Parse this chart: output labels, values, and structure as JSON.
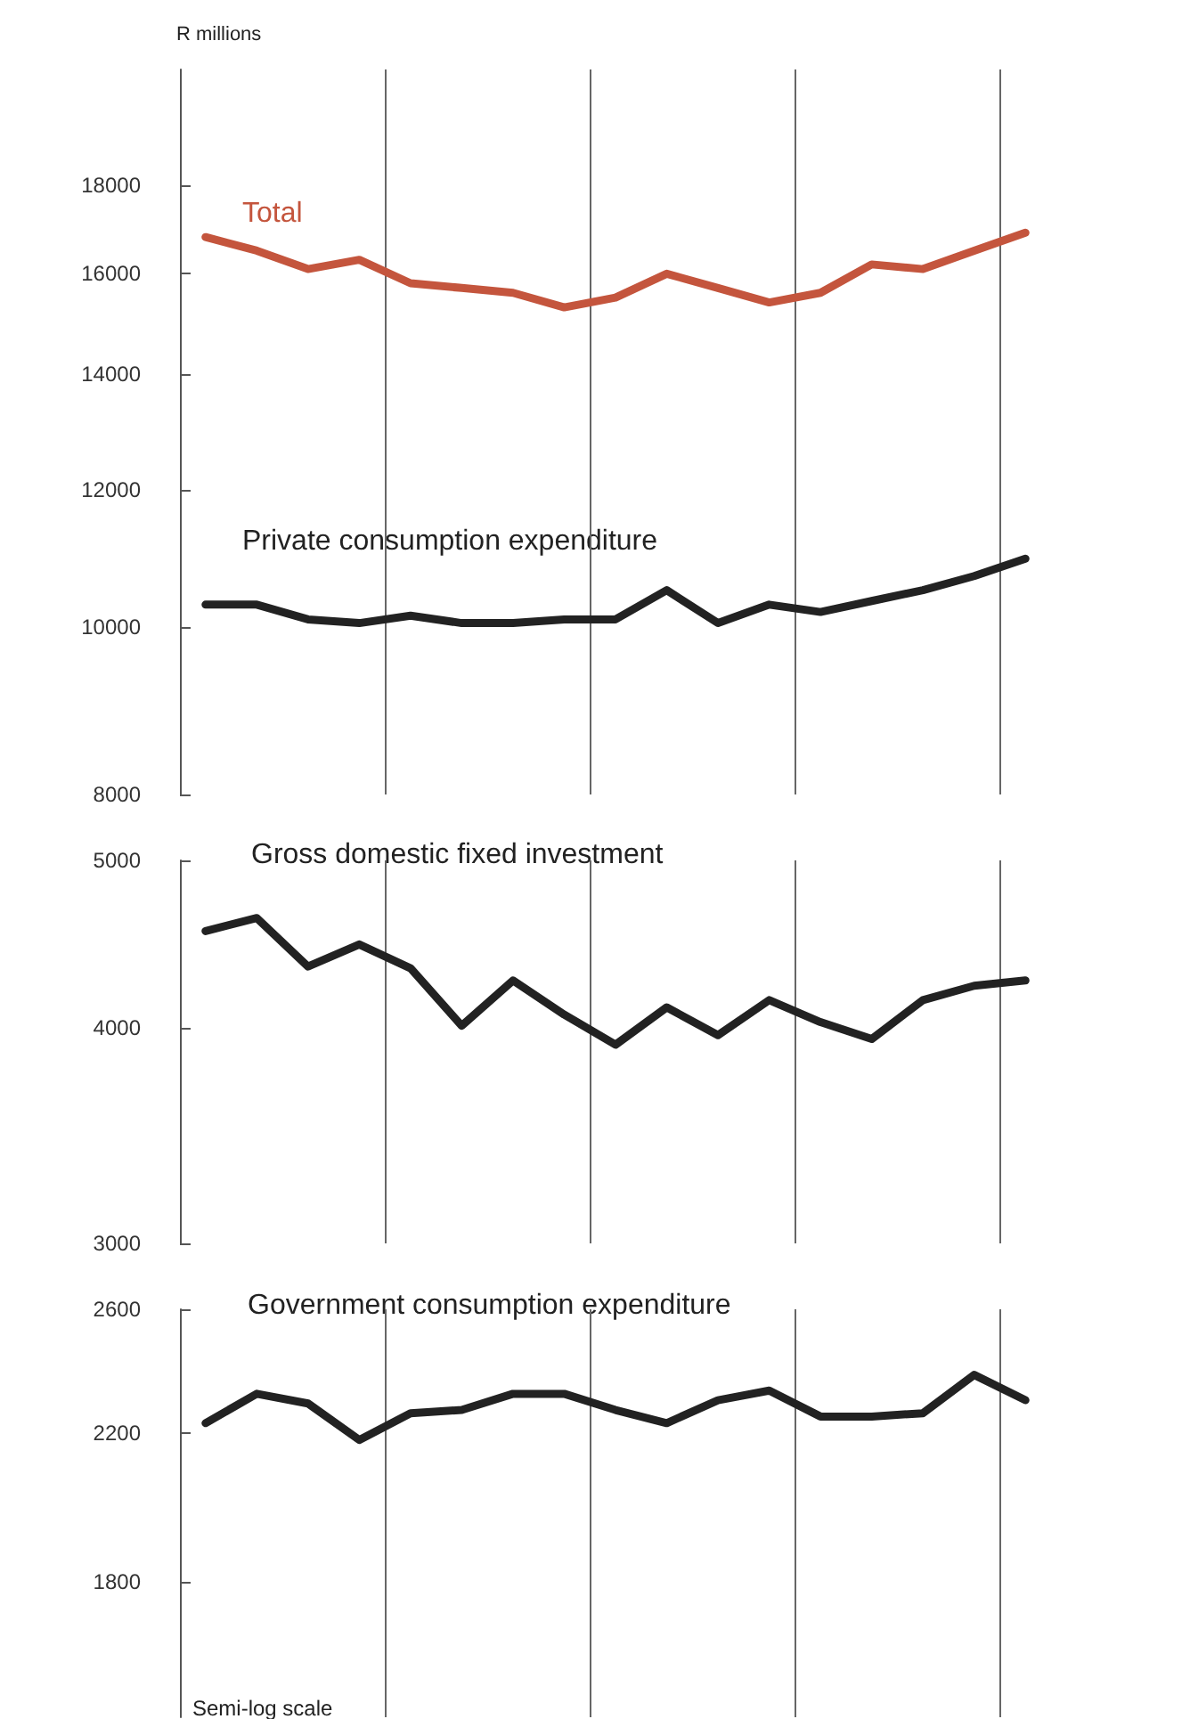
{
  "chart_data": [
    {
      "type": "line",
      "ylabel": "R millions",
      "log": true,
      "grid": "x",
      "categories": [
        null,
        null,
        null,
        null,
        null,
        null,
        null,
        null,
        null,
        null,
        null,
        null,
        null,
        null,
        null,
        null,
        null
      ],
      "ylim": [
        8000,
        21000
      ],
      "yticks": [
        8000,
        10000,
        12000,
        14000,
        16000,
        18000
      ],
      "series": [
        {
          "name": "Total",
          "color": "#c4553d",
          "values": [
            16800,
            16500,
            16100,
            16300,
            15800,
            15700,
            15600,
            15300,
            15500,
            16000,
            15700,
            15400,
            15600,
            16200,
            16100,
            16500,
            16900
          ]
        },
        {
          "name": "Private consumption expenditure",
          "color": "#222222",
          "values": [
            10300,
            10300,
            10100,
            10050,
            10150,
            10050,
            10050,
            10100,
            10100,
            10500,
            10050,
            10300,
            10200,
            10350,
            10500,
            10700,
            10950
          ]
        }
      ]
    },
    {
      "type": "line",
      "log": true,
      "grid": "x",
      "categories": [
        null,
        null,
        null,
        null,
        null,
        null,
        null,
        null,
        null,
        null,
        null,
        null,
        null,
        null,
        null,
        null,
        null
      ],
      "ylim": [
        3000,
        5000
      ],
      "yticks": [
        3000,
        4000,
        5000
      ],
      "series": [
        {
          "name": "Gross domestic fixed investment",
          "color": "#222222",
          "values": [
            4550,
            4630,
            4340,
            4470,
            4330,
            4010,
            4260,
            4070,
            3910,
            4110,
            3960,
            4150,
            4030,
            3940,
            4150,
            4230,
            4260
          ]
        }
      ]
    },
    {
      "type": "line",
      "log": true,
      "grid": "x",
      "annotations": [
        "Semi-log scale"
      ],
      "categories": [
        null,
        null,
        null,
        null,
        null,
        null,
        null,
        null,
        null,
        null,
        null,
        null,
        null,
        null,
        null,
        null,
        null
      ],
      "ylim": [
        1500,
        2600
      ],
      "yticks": [
        1800,
        2200,
        2600
      ],
      "series": [
        {
          "name": "Government consumption expenditure",
          "color": "#222222",
          "values": [
            2230,
            2320,
            2290,
            2180,
            2260,
            2270,
            2320,
            2320,
            2270,
            2230,
            2300,
            2330,
            2250,
            2250,
            2260,
            2380,
            2300
          ]
        }
      ]
    }
  ]
}
